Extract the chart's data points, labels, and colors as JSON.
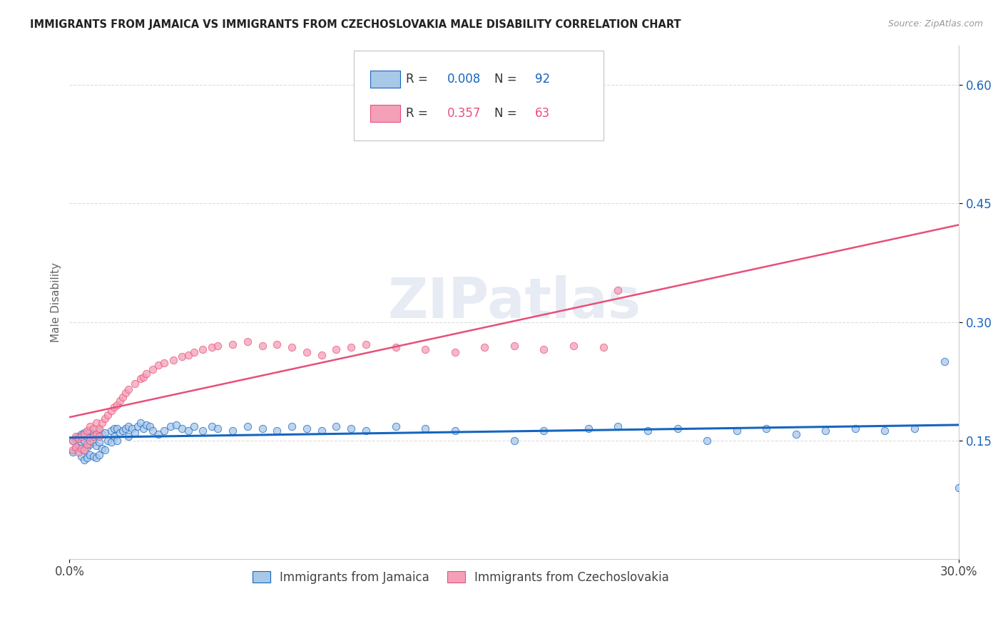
{
  "title": "IMMIGRANTS FROM JAMAICA VS IMMIGRANTS FROM CZECHOSLOVAKIA MALE DISABILITY CORRELATION CHART",
  "source": "Source: ZipAtlas.com",
  "ylabel": "Male Disability",
  "xlim": [
    0.0,
    0.3
  ],
  "ylim": [
    0.0,
    0.65
  ],
  "xtick_labels": [
    "0.0%",
    "",
    "",
    "",
    "",
    "",
    "",
    "",
    "",
    "",
    "",
    "",
    "",
    "",
    "",
    "",
    "",
    "",
    "",
    "",
    "",
    "",
    "",
    "",
    "",
    "",
    "",
    "",
    "",
    "30.0%"
  ],
  "xtick_vals_shown": [
    0.0,
    0.3
  ],
  "ytick_labels": [
    "15.0%",
    "30.0%",
    "45.0%",
    "60.0%"
  ],
  "ytick_vals": [
    0.15,
    0.3,
    0.45,
    0.6
  ],
  "legend_labels": [
    "Immigrants from Jamaica",
    "Immigrants from Czechoslovakia"
  ],
  "R_jamaica": 0.008,
  "N_jamaica": 92,
  "R_czech": 0.357,
  "N_czech": 63,
  "color_jamaica": "#a8c8e8",
  "color_czech": "#f4a0b8",
  "trendline_jamaica_color": "#1565c0",
  "trendline_czech_color": "#e8507a",
  "background_color": "#ffffff",
  "watermark": "ZIPatlas",
  "jamaica_x": [
    0.001,
    0.001,
    0.002,
    0.002,
    0.003,
    0.003,
    0.004,
    0.004,
    0.004,
    0.005,
    0.005,
    0.005,
    0.005,
    0.006,
    0.006,
    0.006,
    0.007,
    0.007,
    0.007,
    0.007,
    0.008,
    0.008,
    0.008,
    0.009,
    0.009,
    0.009,
    0.01,
    0.01,
    0.01,
    0.011,
    0.011,
    0.012,
    0.012,
    0.013,
    0.014,
    0.014,
    0.015,
    0.015,
    0.016,
    0.016,
    0.017,
    0.018,
    0.019,
    0.02,
    0.02,
    0.021,
    0.022,
    0.023,
    0.024,
    0.025,
    0.026,
    0.027,
    0.028,
    0.03,
    0.032,
    0.034,
    0.036,
    0.038,
    0.04,
    0.042,
    0.045,
    0.048,
    0.05,
    0.055,
    0.06,
    0.065,
    0.07,
    0.075,
    0.08,
    0.085,
    0.09,
    0.095,
    0.1,
    0.11,
    0.12,
    0.13,
    0.15,
    0.16,
    0.175,
    0.185,
    0.195,
    0.205,
    0.215,
    0.225,
    0.235,
    0.245,
    0.255,
    0.265,
    0.275,
    0.285,
    0.295,
    0.3
  ],
  "jamaica_y": [
    0.135,
    0.15,
    0.14,
    0.152,
    0.145,
    0.155,
    0.13,
    0.148,
    0.158,
    0.125,
    0.138,
    0.15,
    0.16,
    0.128,
    0.142,
    0.155,
    0.132,
    0.145,
    0.155,
    0.162,
    0.13,
    0.148,
    0.158,
    0.128,
    0.143,
    0.158,
    0.132,
    0.148,
    0.162,
    0.14,
    0.158,
    0.138,
    0.16,
    0.15,
    0.148,
    0.162,
    0.155,
    0.165,
    0.15,
    0.165,
    0.16,
    0.162,
    0.165,
    0.155,
    0.168,
    0.165,
    0.16,
    0.168,
    0.172,
    0.165,
    0.17,
    0.168,
    0.162,
    0.158,
    0.162,
    0.168,
    0.17,
    0.165,
    0.162,
    0.168,
    0.162,
    0.168,
    0.165,
    0.162,
    0.168,
    0.165,
    0.162,
    0.168,
    0.165,
    0.162,
    0.168,
    0.165,
    0.162,
    0.168,
    0.165,
    0.162,
    0.15,
    0.162,
    0.165,
    0.168,
    0.162,
    0.165,
    0.15,
    0.162,
    0.165,
    0.158,
    0.162,
    0.165,
    0.162,
    0.165,
    0.25,
    0.09
  ],
  "czech_x": [
    0.001,
    0.001,
    0.002,
    0.002,
    0.003,
    0.003,
    0.004,
    0.004,
    0.005,
    0.005,
    0.006,
    0.006,
    0.007,
    0.007,
    0.008,
    0.008,
    0.009,
    0.009,
    0.01,
    0.01,
    0.011,
    0.012,
    0.013,
    0.014,
    0.015,
    0.016,
    0.017,
    0.018,
    0.019,
    0.02,
    0.022,
    0.024,
    0.025,
    0.026,
    0.028,
    0.03,
    0.032,
    0.035,
    0.038,
    0.04,
    0.042,
    0.045,
    0.048,
    0.05,
    0.055,
    0.06,
    0.065,
    0.07,
    0.075,
    0.08,
    0.085,
    0.09,
    0.095,
    0.1,
    0.11,
    0.12,
    0.13,
    0.14,
    0.15,
    0.16,
    0.17,
    0.18,
    0.185
  ],
  "czech_y": [
    0.138,
    0.15,
    0.142,
    0.155,
    0.135,
    0.152,
    0.14,
    0.155,
    0.138,
    0.158,
    0.145,
    0.162,
    0.15,
    0.168,
    0.155,
    0.165,
    0.158,
    0.172,
    0.155,
    0.165,
    0.172,
    0.178,
    0.182,
    0.188,
    0.192,
    0.195,
    0.2,
    0.205,
    0.21,
    0.215,
    0.222,
    0.228,
    0.23,
    0.235,
    0.24,
    0.245,
    0.248,
    0.252,
    0.256,
    0.258,
    0.262,
    0.265,
    0.268,
    0.27,
    0.272,
    0.275,
    0.27,
    0.272,
    0.268,
    0.262,
    0.258,
    0.265,
    0.268,
    0.272,
    0.268,
    0.265,
    0.262,
    0.268,
    0.27,
    0.265,
    0.27,
    0.268,
    0.34
  ]
}
